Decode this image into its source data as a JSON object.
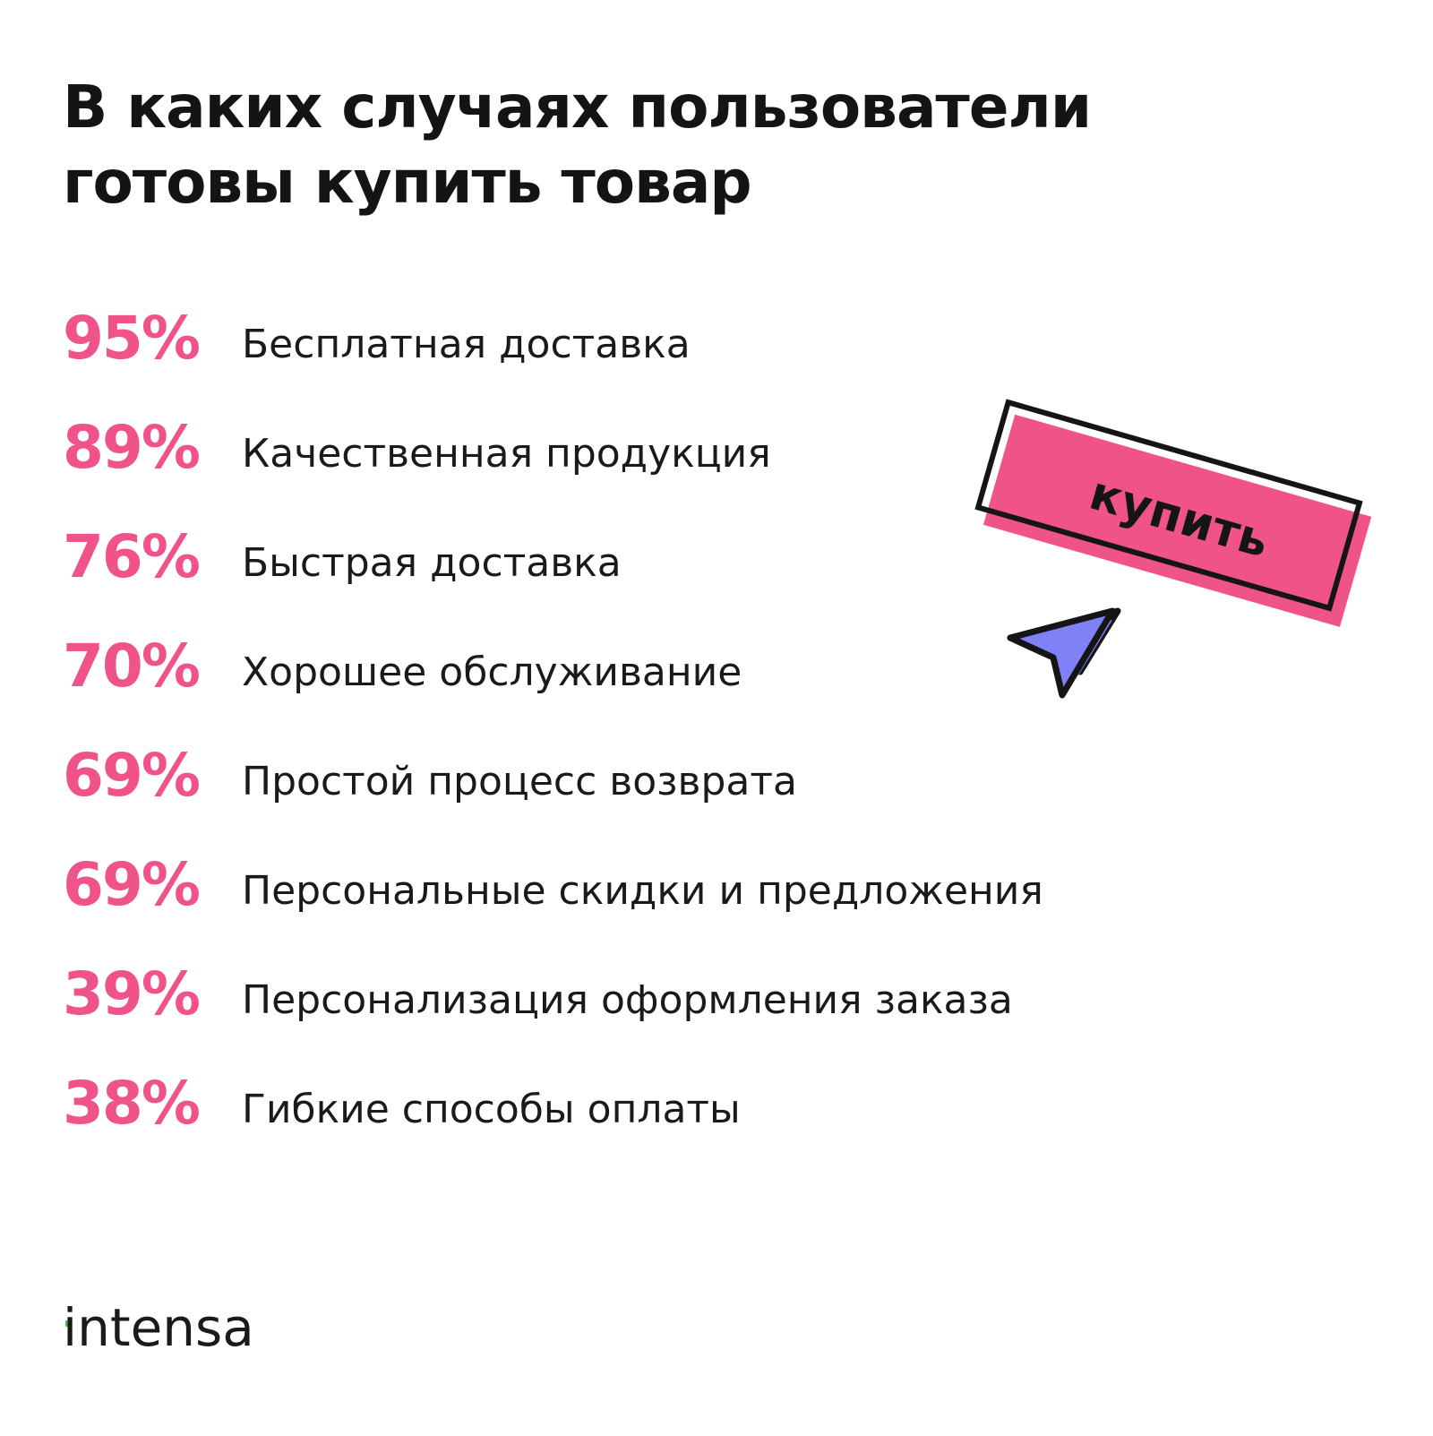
{
  "title": "В каких случаях пользователи готовы купить товар",
  "items": [
    {
      "percent": "95%",
      "label": "Бесплатная доставка"
    },
    {
      "percent": "89%",
      "label": "Качественная продукция"
    },
    {
      "percent": "76%",
      "label": "Быстрая доставка"
    },
    {
      "percent": "70%",
      "label": "Хорошее обслуживание"
    },
    {
      "percent": "69%",
      "label": "Простой процесс возврата"
    },
    {
      "percent": "69%",
      "label": "Персональные скидки и предложения"
    },
    {
      "percent": "39%",
      "label": "Персонализация оформления заказа"
    },
    {
      "percent": "38%",
      "label": "Гибкие способы оплаты"
    }
  ],
  "sticker": {
    "label": "купить",
    "icon": "cursor-arrow-icon"
  },
  "logo": {
    "text": "intensa"
  },
  "colors": {
    "accent": "#f0528a",
    "cursor": "#8080f7",
    "text": "#1a1a1a",
    "logo_dot": "#3ccf3c",
    "background": "#ffffff"
  }
}
